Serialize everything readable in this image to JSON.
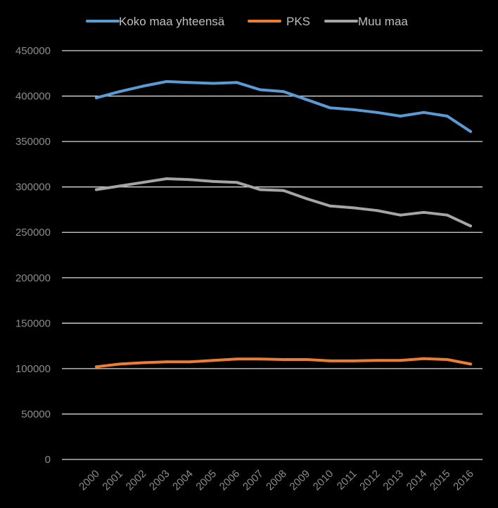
{
  "chart_data": {
    "type": "line",
    "title": "",
    "xlabel": "",
    "ylabel": "",
    "ylim": [
      0,
      450000
    ],
    "y_ticks": [
      0,
      50000,
      100000,
      150000,
      200000,
      250000,
      300000,
      350000,
      400000,
      450000
    ],
    "y_tick_labels": [
      "0",
      "50000",
      "100000",
      "150000",
      "200000",
      "250000",
      "300000",
      "350000",
      "400000",
      "450000"
    ],
    "categories": [
      "2000",
      "2001",
      "2002",
      "2003",
      "2004",
      "2005",
      "2006",
      "2007",
      "2008",
      "2009",
      "2010",
      "2011",
      "2012",
      "2013",
      "2014",
      "2015",
      "2016"
    ],
    "grid": true,
    "legend_position": "top",
    "background": "#000000",
    "grid_color": "#d9d9d9",
    "series": [
      {
        "name": "Koko maa yhteensä",
        "color": "#5b9bd5",
        "values": [
          398000,
          405000,
          411000,
          416000,
          415000,
          414000,
          415000,
          407000,
          405000,
          396000,
          387000,
          385000,
          382000,
          378000,
          382000,
          378000,
          361000
        ]
      },
      {
        "name": "PKS",
        "color": "#ed7d31",
        "values": [
          102000,
          105000,
          106500,
          107500,
          107500,
          109000,
          110500,
          110500,
          110000,
          110000,
          108500,
          108500,
          109000,
          109000,
          111000,
          110000,
          105000
        ]
      },
      {
        "name": "Muu maa",
        "color": "#a5a5a5",
        "values": [
          297000,
          301000,
          305000,
          309000,
          308000,
          306000,
          305000,
          297000,
          296000,
          287000,
          279000,
          277000,
          274000,
          269000,
          272000,
          269000,
          257000
        ]
      }
    ]
  }
}
